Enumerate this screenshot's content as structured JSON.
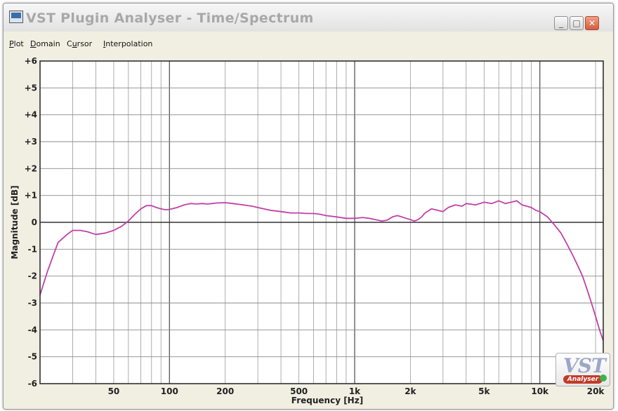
{
  "window": {
    "title": "VST Plugin Analyser - Time/Spectrum",
    "controls": {
      "minimize": "_",
      "maximize": "□",
      "close": "✕"
    }
  },
  "menu": {
    "items": [
      {
        "prefix": "",
        "key": "P",
        "rest": "lot"
      },
      {
        "prefix": "",
        "key": "D",
        "rest": "omain"
      },
      {
        "prefix": "C",
        "key": "u",
        "rest": "rsor"
      },
      {
        "prefix": "",
        "key": "I",
        "rest": "nterpolation"
      }
    ]
  },
  "logo": {
    "main": "VST",
    "sub": "Analyser"
  },
  "chart_data": {
    "type": "line",
    "xlabel": "Frequency [Hz]",
    "ylabel": "Magnitude [dB]",
    "x_scale": "log",
    "xlim": [
      20,
      22000
    ],
    "ylim": [
      -6,
      6
    ],
    "grid": true,
    "x_ticks": [
      {
        "value": 50,
        "label": "50"
      },
      {
        "value": 100,
        "label": "100"
      },
      {
        "value": 200,
        "label": "200"
      },
      {
        "value": 500,
        "label": "500"
      },
      {
        "value": 1000,
        "label": "1k"
      },
      {
        "value": 2000,
        "label": "2k"
      },
      {
        "value": 5000,
        "label": "5k"
      },
      {
        "value": 10000,
        "label": "10k"
      },
      {
        "value": 20000,
        "label": "20k"
      }
    ],
    "y_ticks": [
      {
        "value": 6,
        "label": "+6"
      },
      {
        "value": 5,
        "label": "+5"
      },
      {
        "value": 4,
        "label": "+4"
      },
      {
        "value": 3,
        "label": "+3"
      },
      {
        "value": 2,
        "label": "+2"
      },
      {
        "value": 1,
        "label": "+1"
      },
      {
        "value": 0,
        "label": "0"
      },
      {
        "value": -1,
        "label": "-1"
      },
      {
        "value": -2,
        "label": "-2"
      },
      {
        "value": -3,
        "label": "-3"
      },
      {
        "value": -4,
        "label": "-4"
      },
      {
        "value": -5,
        "label": "-5"
      },
      {
        "value": -6,
        "label": "-6"
      }
    ],
    "series": [
      {
        "color": "#c040a8",
        "points": [
          [
            20,
            -2.7
          ],
          [
            22,
            -1.8
          ],
          [
            25,
            -0.75
          ],
          [
            28,
            -0.45
          ],
          [
            30,
            -0.3
          ],
          [
            33,
            -0.3
          ],
          [
            36,
            -0.35
          ],
          [
            40,
            -0.45
          ],
          [
            45,
            -0.4
          ],
          [
            50,
            -0.3
          ],
          [
            55,
            -0.15
          ],
          [
            60,
            0.05
          ],
          [
            65,
            0.3
          ],
          [
            70,
            0.5
          ],
          [
            75,
            0.62
          ],
          [
            80,
            0.62
          ],
          [
            85,
            0.55
          ],
          [
            90,
            0.5
          ],
          [
            95,
            0.47
          ],
          [
            100,
            0.48
          ],
          [
            110,
            0.55
          ],
          [
            120,
            0.65
          ],
          [
            130,
            0.7
          ],
          [
            140,
            0.68
          ],
          [
            150,
            0.7
          ],
          [
            160,
            0.68
          ],
          [
            170,
            0.7
          ],
          [
            180,
            0.72
          ],
          [
            200,
            0.73
          ],
          [
            220,
            0.7
          ],
          [
            250,
            0.65
          ],
          [
            280,
            0.6
          ],
          [
            300,
            0.55
          ],
          [
            350,
            0.45
          ],
          [
            400,
            0.4
          ],
          [
            450,
            0.35
          ],
          [
            500,
            0.35
          ],
          [
            550,
            0.33
          ],
          [
            600,
            0.33
          ],
          [
            650,
            0.3
          ],
          [
            700,
            0.25
          ],
          [
            800,
            0.2
          ],
          [
            900,
            0.15
          ],
          [
            1000,
            0.15
          ],
          [
            1100,
            0.18
          ],
          [
            1200,
            0.15
          ],
          [
            1300,
            0.1
          ],
          [
            1400,
            0.05
          ],
          [
            1500,
            0.08
          ],
          [
            1600,
            0.2
          ],
          [
            1700,
            0.25
          ],
          [
            1800,
            0.2
          ],
          [
            1900,
            0.15
          ],
          [
            2000,
            0.1
          ],
          [
            2100,
            0.05
          ],
          [
            2200,
            0.1
          ],
          [
            2300,
            0.2
          ],
          [
            2400,
            0.35
          ],
          [
            2600,
            0.5
          ],
          [
            2800,
            0.45
          ],
          [
            3000,
            0.4
          ],
          [
            3200,
            0.55
          ],
          [
            3500,
            0.65
          ],
          [
            3800,
            0.6
          ],
          [
            4000,
            0.7
          ],
          [
            4500,
            0.65
          ],
          [
            5000,
            0.75
          ],
          [
            5500,
            0.7
          ],
          [
            6000,
            0.8
          ],
          [
            6500,
            0.7
          ],
          [
            7000,
            0.75
          ],
          [
            7500,
            0.8
          ],
          [
            8000,
            0.65
          ],
          [
            8500,
            0.6
          ],
          [
            9000,
            0.55
          ],
          [
            9500,
            0.45
          ],
          [
            10000,
            0.4
          ],
          [
            11000,
            0.2
          ],
          [
            12000,
            -0.1
          ],
          [
            13000,
            -0.4
          ],
          [
            14000,
            -0.8
          ],
          [
            15000,
            -1.2
          ],
          [
            16000,
            -1.6
          ],
          [
            17000,
            -2.0
          ],
          [
            18000,
            -2.5
          ],
          [
            19000,
            -3.0
          ],
          [
            20000,
            -3.5
          ],
          [
            21000,
            -4.0
          ],
          [
            22000,
            -4.4
          ]
        ]
      }
    ]
  }
}
